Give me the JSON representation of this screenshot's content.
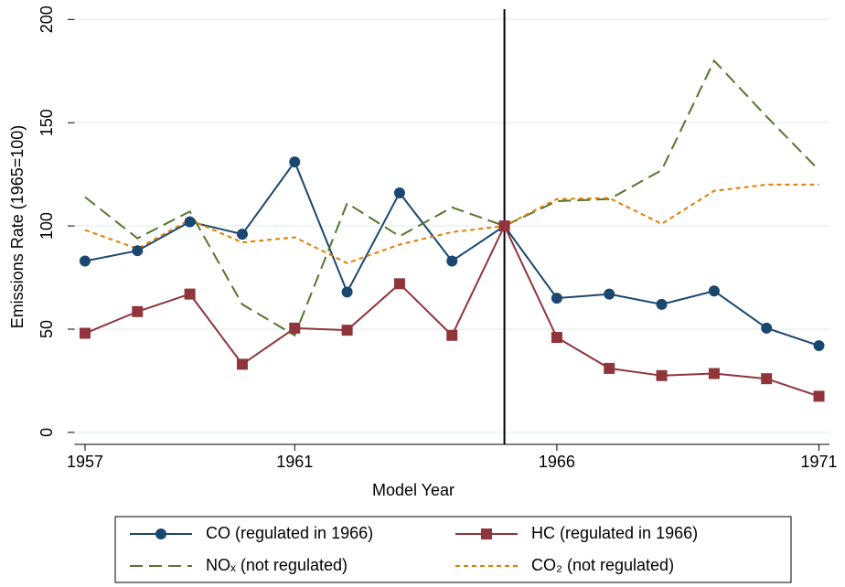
{
  "chart_data": {
    "type": "line",
    "x_label": "Model Year",
    "y_label": "Emissions Rate (1965=100)",
    "x": [
      1957,
      1958,
      1959,
      1960,
      1961,
      1962,
      1963,
      1964,
      1965,
      1966,
      1967,
      1968,
      1969,
      1970,
      1971
    ],
    "series": [
      {
        "name": "CO (regulated in 1966)",
        "color": "#1a476f",
        "dash": "solid",
        "marker": "circle",
        "values": [
          83,
          88,
          102,
          96,
          131,
          68,
          116,
          83,
          100,
          65,
          67,
          62,
          68.5,
          50.5,
          42
        ]
      },
      {
        "name": "HC (regulated in 1966)",
        "color": "#90353b",
        "dash": "solid",
        "marker": "square",
        "values": [
          48,
          58.5,
          67,
          33,
          50.5,
          49.5,
          72,
          47,
          100,
          46,
          31,
          27.5,
          28.5,
          26,
          17.5
        ]
      },
      {
        "name": "NOₓ (not regulated)",
        "color": "#55752f",
        "dash": "long",
        "marker": null,
        "values": [
          114,
          94,
          107,
          62,
          47,
          111,
          95,
          109,
          100,
          112,
          113,
          127,
          180,
          153,
          127
        ]
      },
      {
        "name": "CO₂ (not regulated)",
        "color": "#e37e00",
        "dash": "short",
        "marker": null,
        "values": [
          98,
          89,
          103,
          92,
          94.5,
          82,
          91,
          97,
          100,
          113,
          113.5,
          101,
          117,
          120,
          120
        ]
      }
    ],
    "xlim": [
      1956.8,
      1971.2
    ],
    "xticks": [
      1957,
      1961,
      1966,
      1971
    ],
    "ylim": [
      -5.8,
      205
    ],
    "yticks": [
      0,
      50,
      100,
      150,
      200
    ],
    "reference_line_x": 1965,
    "grid": true,
    "legend": "bottom"
  }
}
